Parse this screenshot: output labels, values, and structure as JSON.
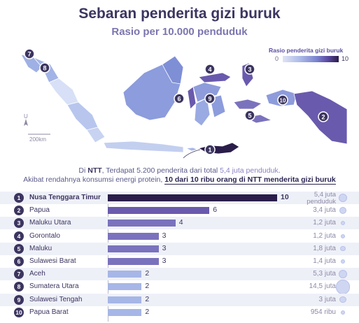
{
  "title": "Sebaran penderita gizi buruk",
  "subtitle": "Rasio per 10.000 penduduk",
  "legend": {
    "title": "Rasio penderita gizi buruk",
    "min": "0",
    "max": "10"
  },
  "map": {
    "scale_label": "200km",
    "north_label": "U"
  },
  "note": {
    "line1_pre": "Di ",
    "line1_ntt": "NTT",
    "line1_mid": ", Terdapat 5.200 penderita dari total ",
    "line1_hl": "5,4 juta penduduk",
    "line1_end": ".",
    "line2_pre": "Akibat rendahnya konsumsi energi protein, ",
    "line2_hl": "10 dari 10 ribu orang di NTT menderita gizi buruk"
  },
  "colors": {
    "top": "#2a1d4a",
    "high": "#6a5aad",
    "mid": "#7b72bd",
    "low": "#a6b6e6"
  },
  "chart_data": {
    "type": "bar",
    "orientation": "horizontal",
    "xlim": [
      0,
      10
    ],
    "rows": [
      {
        "rank": "1",
        "name": "Nusa Tenggara Timur",
        "value": 10,
        "population": "5,4 juta penduduk",
        "population_millions": 5.4
      },
      {
        "rank": "2",
        "name": "Papua",
        "value": 6,
        "population": "3,4 juta",
        "population_millions": 3.4
      },
      {
        "rank": "3",
        "name": "Maluku Utara",
        "value": 4,
        "population": "1,2 juta",
        "population_millions": 1.2
      },
      {
        "rank": "4",
        "name": "Gorontalo",
        "value": 3,
        "population": "1,2 juta",
        "population_millions": 1.2
      },
      {
        "rank": "5",
        "name": "Maluku",
        "value": 3,
        "population": "1,8 juta",
        "population_millions": 1.8
      },
      {
        "rank": "6",
        "name": "Sulawesi Barat",
        "value": 3,
        "population": "1,4 juta",
        "population_millions": 1.4
      },
      {
        "rank": "7",
        "name": "Aceh",
        "value": 2,
        "population": "5,3 juta",
        "population_millions": 5.3
      },
      {
        "rank": "8",
        "name": "Sumatera Utara",
        "value": 2,
        "population": "14,5 juta",
        "population_millions": 14.5
      },
      {
        "rank": "9",
        "name": "Sulawesi Tengah",
        "value": 2,
        "population": "3 juta",
        "population_millions": 3.0
      },
      {
        "rank": "10",
        "name": "Papua Barat",
        "value": 2,
        "population": "954 ribu",
        "population_millions": 0.954
      }
    ]
  }
}
